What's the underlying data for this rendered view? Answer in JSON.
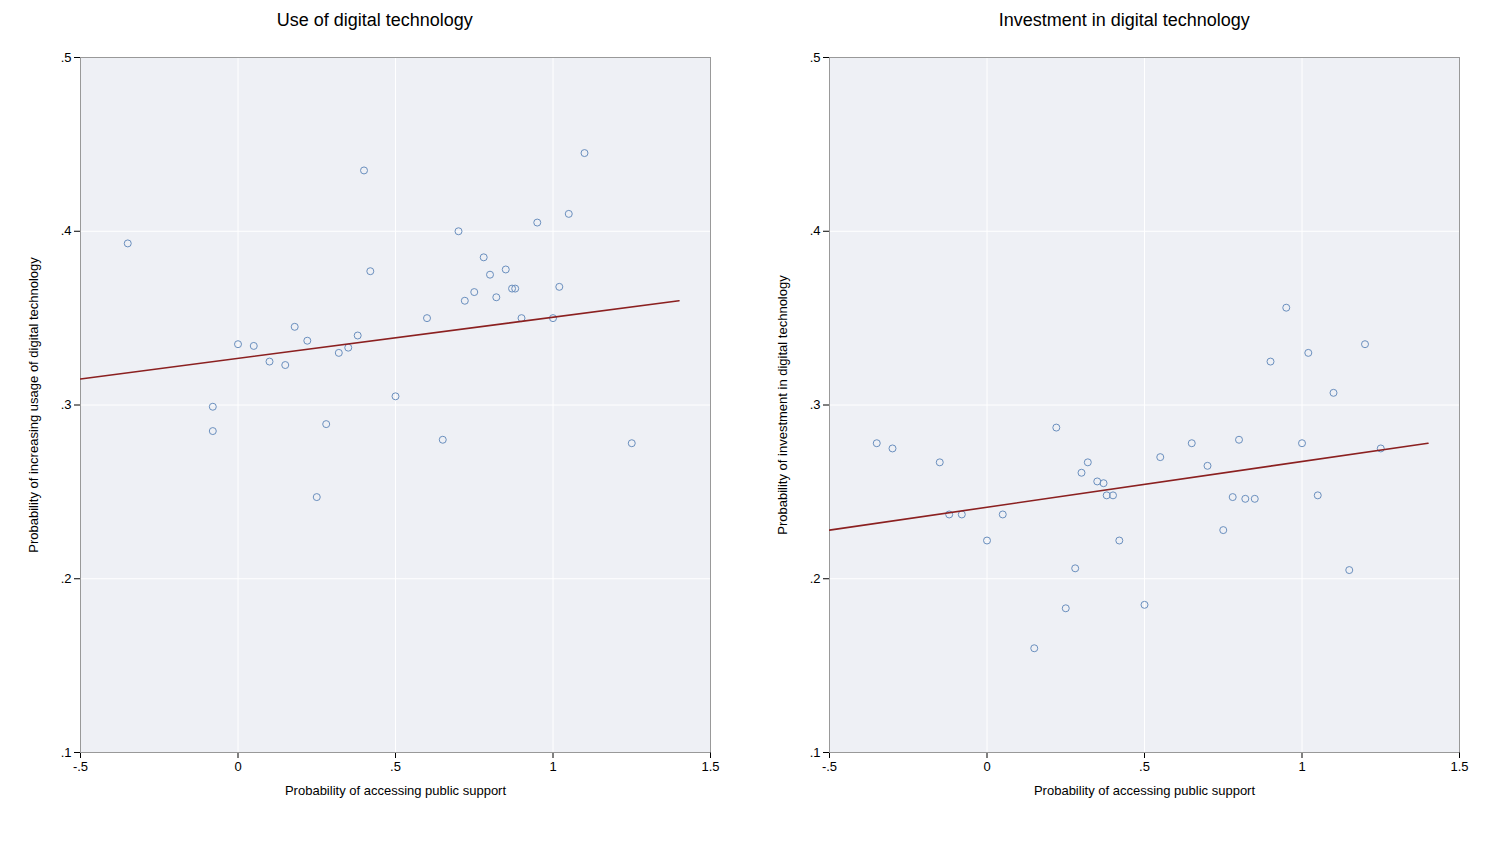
{
  "chart_data": [
    {
      "type": "scatter",
      "title": "Use of digital technology",
      "x_label": "Probability of accessing public support",
      "y_label": "Probability of increasing usage of digital technology",
      "xlim": [
        -0.5,
        1.5
      ],
      "ylim": [
        0.1,
        0.5
      ],
      "xticks": [
        {
          "value": -0.5,
          "label": "-.5"
        },
        0,
        {
          "value": 0.5,
          "label": ".5"
        },
        1,
        1.5
      ],
      "yticks": [
        {
          "value": 0.1,
          "label": ".1"
        },
        {
          "value": 0.2,
          "label": ".2"
        },
        {
          "value": 0.3,
          "label": ".3"
        },
        {
          "value": 0.4,
          "label": ".4"
        },
        {
          "value": 0.5,
          "label": ".5"
        }
      ],
      "grid": true,
      "series": [
        {
          "type": "scatter",
          "marker": "circle",
          "color": "#6a8fbe",
          "x": [
            -0.35,
            -0.08,
            -0.08,
            0.0,
            0.05,
            0.1,
            0.15,
            0.18,
            0.22,
            0.25,
            0.28,
            0.32,
            0.35,
            0.38,
            0.4,
            0.42,
            0.5,
            0.6,
            0.65,
            0.7,
            0.72,
            0.75,
            0.78,
            0.8,
            0.82,
            0.85,
            0.87,
            0.88,
            0.9,
            0.95,
            1.0,
            1.02,
            1.05,
            1.1,
            1.25
          ],
          "values": [
            0.393,
            0.299,
            0.285,
            0.335,
            0.334,
            0.325,
            0.323,
            0.345,
            0.337,
            0.247,
            0.289,
            0.33,
            0.333,
            0.34,
            0.435,
            0.377,
            0.305,
            0.35,
            0.28,
            0.4,
            0.36,
            0.365,
            0.385,
            0.375,
            0.362,
            0.378,
            0.367,
            0.367,
            0.35,
            0.405,
            0.35,
            0.368,
            0.41,
            0.445,
            0.278
          ]
        },
        {
          "type": "line",
          "color": "#8b2020",
          "x": [
            -0.5,
            1.4
          ],
          "values": [
            0.315,
            0.36
          ]
        }
      ]
    },
    {
      "type": "scatter",
      "title": "Investment in digital technology",
      "x_label": "Probability of accessing public support",
      "y_label": "Probability of investment in digital technology",
      "xlim": [
        -0.5,
        1.5
      ],
      "ylim": [
        0.1,
        0.5
      ],
      "xticks": [
        {
          "value": -0.5,
          "label": "-.5"
        },
        0,
        {
          "value": 0.5,
          "label": ".5"
        },
        1,
        1.5
      ],
      "yticks": [
        {
          "value": 0.1,
          "label": ".1"
        },
        {
          "value": 0.2,
          "label": ".2"
        },
        {
          "value": 0.3,
          "label": ".3"
        },
        {
          "value": 0.4,
          "label": ".4"
        },
        {
          "value": 0.5,
          "label": ".5"
        }
      ],
      "grid": true,
      "series": [
        {
          "type": "scatter",
          "marker": "circle",
          "color": "#6a8fbe",
          "x": [
            -0.35,
            -0.3,
            -0.15,
            -0.12,
            -0.08,
            0.0,
            0.05,
            0.15,
            0.22,
            0.25,
            0.28,
            0.3,
            0.32,
            0.35,
            0.37,
            0.38,
            0.4,
            0.42,
            0.5,
            0.55,
            0.65,
            0.7,
            0.75,
            0.78,
            0.8,
            0.82,
            0.85,
            0.9,
            0.95,
            1.0,
            1.02,
            1.05,
            1.1,
            1.15,
            1.2,
            1.25
          ],
          "values": [
            0.278,
            0.275,
            0.267,
            0.237,
            0.237,
            0.222,
            0.237,
            0.16,
            0.287,
            0.183,
            0.206,
            0.261,
            0.267,
            0.256,
            0.255,
            0.248,
            0.248,
            0.222,
            0.185,
            0.27,
            0.278,
            0.265,
            0.228,
            0.247,
            0.28,
            0.246,
            0.246,
            0.325,
            0.356,
            0.278,
            0.33,
            0.248,
            0.307,
            0.205,
            0.335,
            0.275
          ]
        },
        {
          "type": "line",
          "color": "#8b2020",
          "x": [
            -0.5,
            1.4
          ],
          "values": [
            0.228,
            0.278
          ]
        }
      ]
    }
  ]
}
